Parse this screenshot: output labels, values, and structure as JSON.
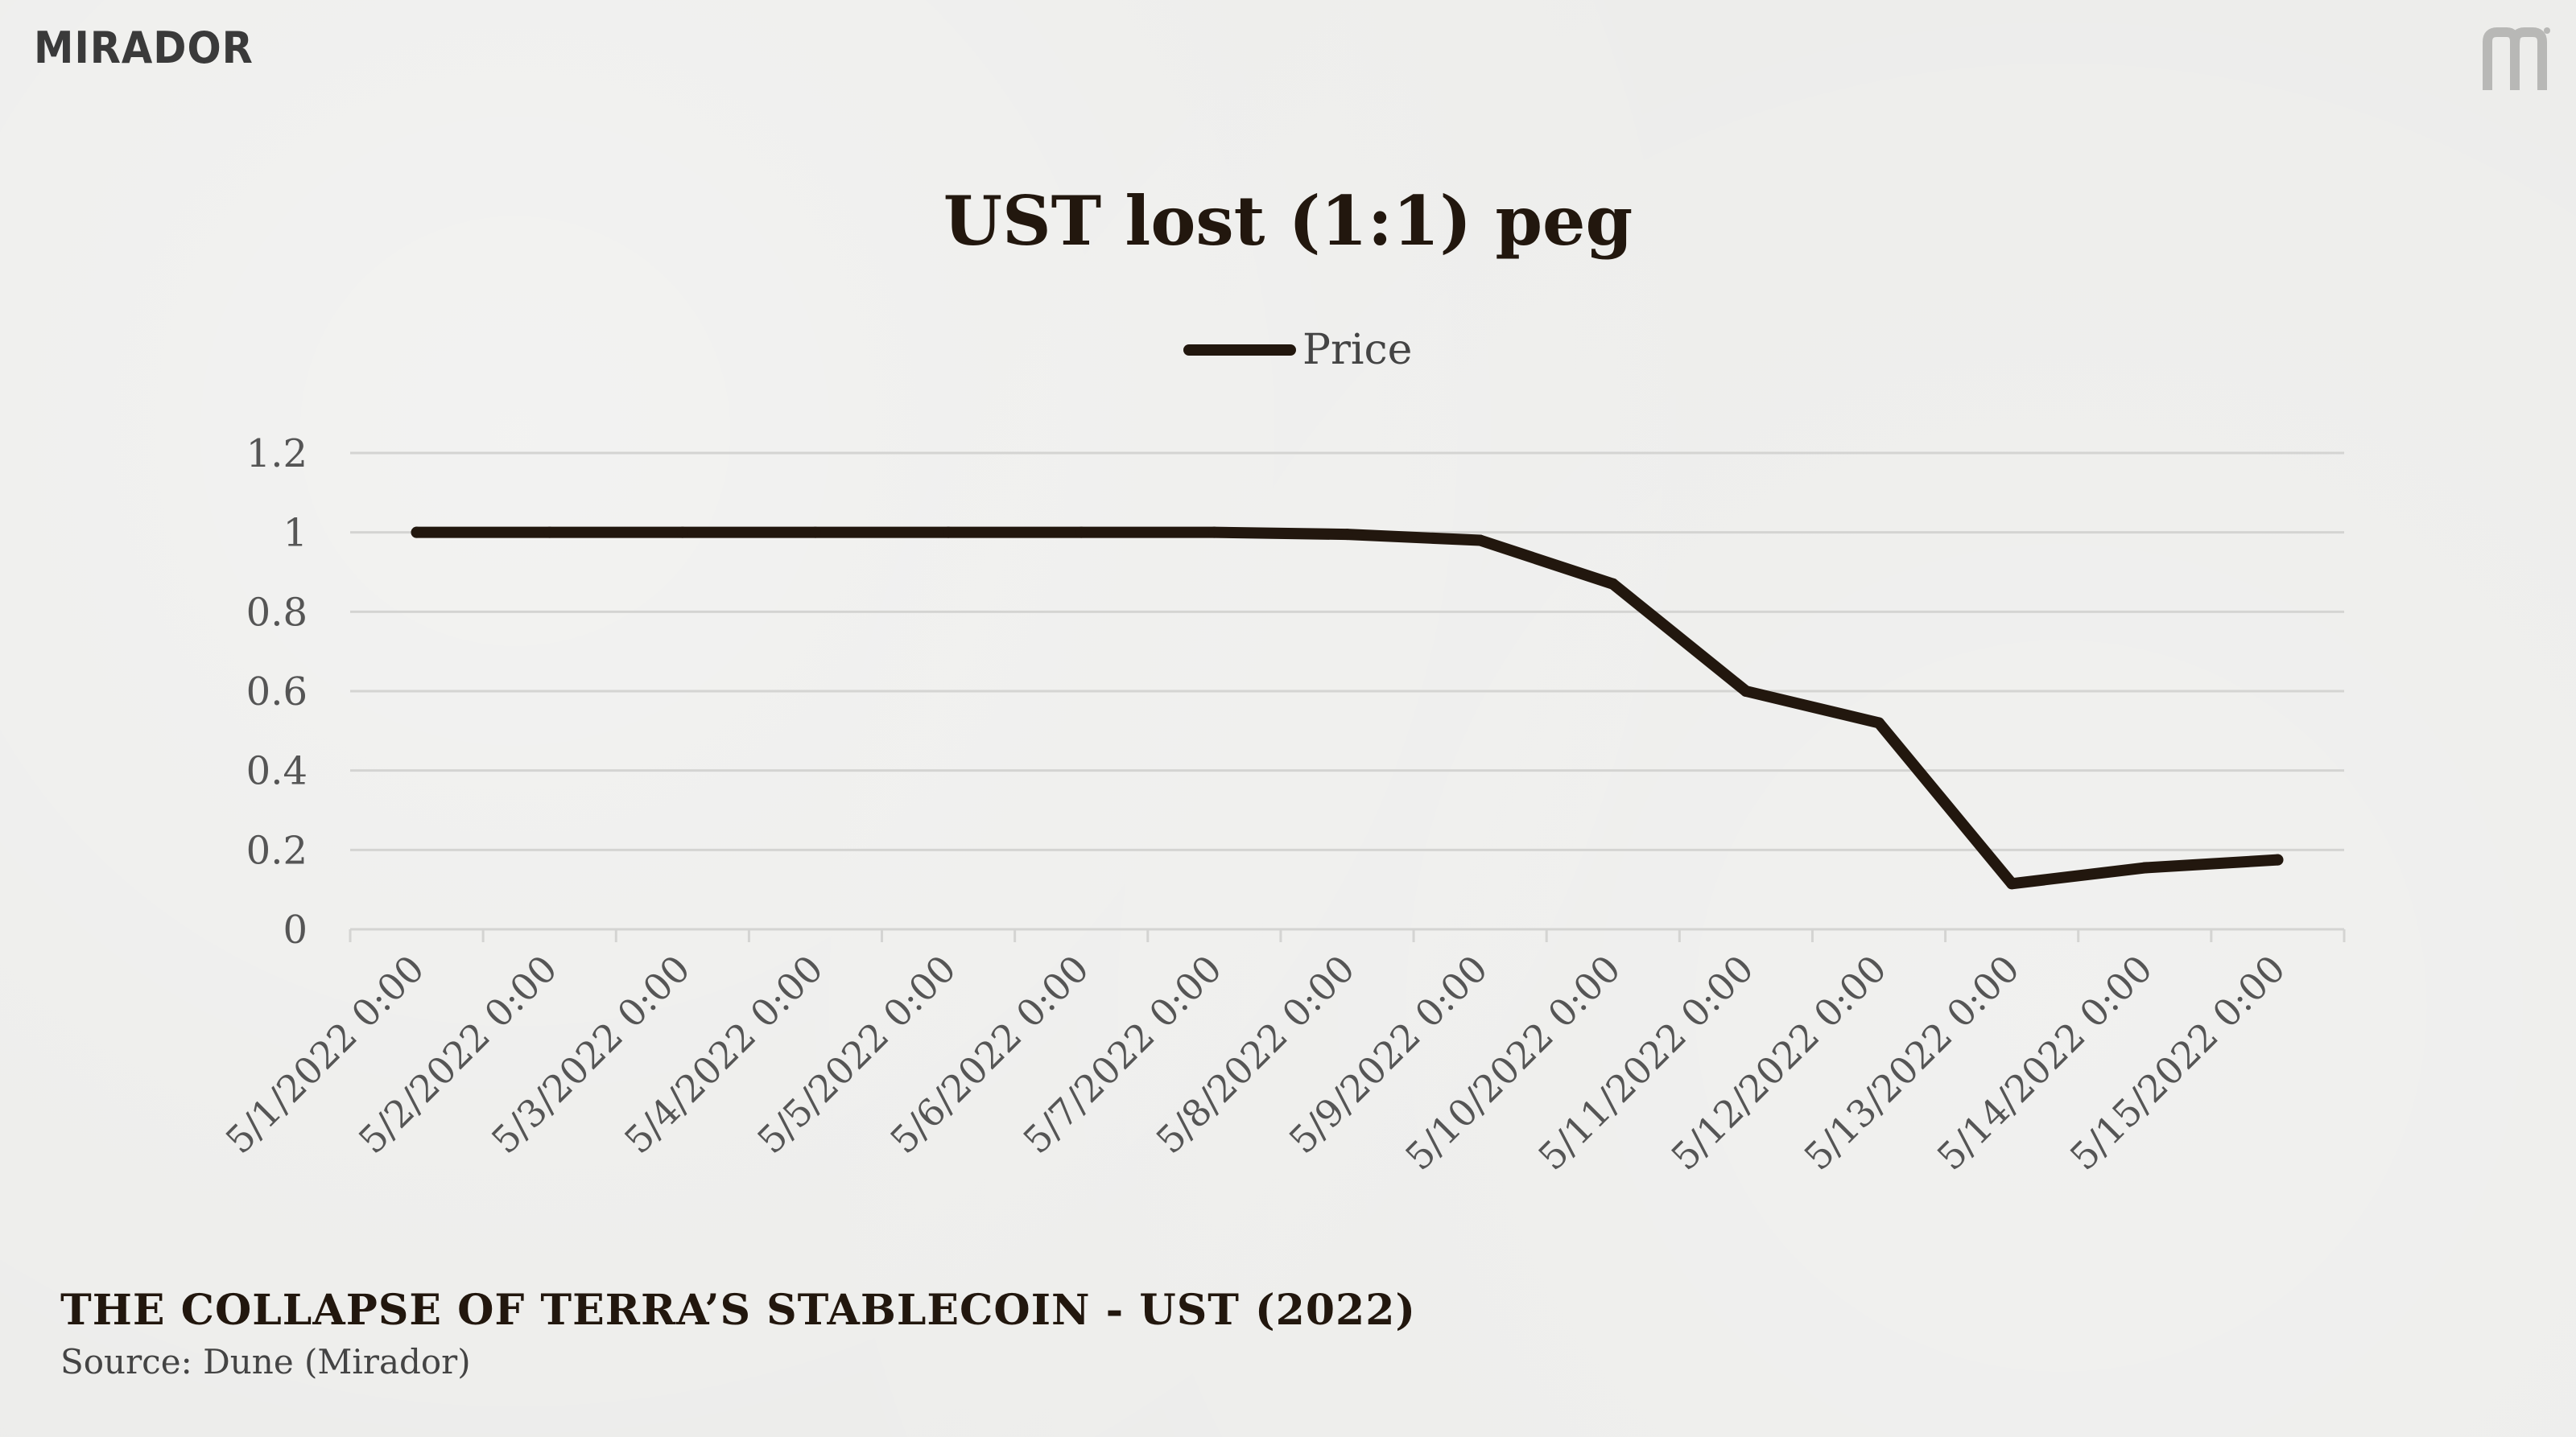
{
  "brand": {
    "logo_text": "MIRADOR",
    "mark_icon": "mirador-m-icon"
  },
  "footer": {
    "title": "THE COLLAPSE OF TERRA’S STABLECOIN - UST (2022)",
    "source": "Source: Dune (Mirador)"
  },
  "colors": {
    "line": "#22170e",
    "grid": "#d4d4d2",
    "axis_text": "#555555"
  },
  "chart_data": {
    "type": "line",
    "title": "UST lost (1:1) peg",
    "legend_position": "top",
    "grid": true,
    "xlabel": "",
    "ylabel": "",
    "ylim": [
      0,
      1.2
    ],
    "y_ticks": [
      "0",
      "0.2",
      "0.4",
      "0.6",
      "0.8",
      "1",
      "1.2"
    ],
    "categories": [
      "5/1/2022 0:00",
      "5/2/2022 0:00",
      "5/3/2022 0:00",
      "5/4/2022 0:00",
      "5/5/2022 0:00",
      "5/6/2022 0:00",
      "5/7/2022 0:00",
      "5/8/2022 0:00",
      "5/9/2022 0:00",
      "5/10/2022 0:00",
      "5/11/2022 0:00",
      "5/12/2022 0:00",
      "5/13/2022 0:00",
      "5/14/2022 0:00",
      "5/15/2022 0:00"
    ],
    "series": [
      {
        "name": "Price",
        "values": [
          1.0,
          1.0,
          1.0,
          1.0,
          1.0,
          1.0,
          1.0,
          0.995,
          0.98,
          0.87,
          0.6,
          0.52,
          0.115,
          0.155,
          0.175
        ]
      }
    ]
  }
}
